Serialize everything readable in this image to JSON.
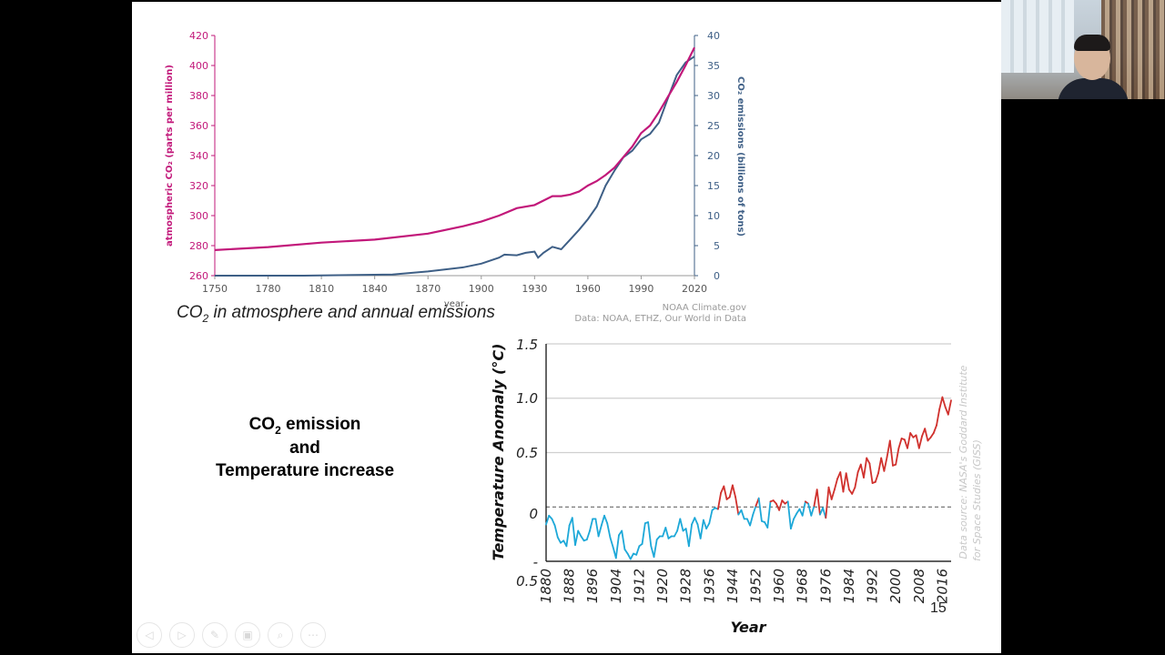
{
  "caption": {
    "main": "CO",
    "sub": "2",
    "rest": " in atmosphere and annual emissions"
  },
  "credits": {
    "line1": "NOAA Climate.gov",
    "line2": "Data: NOAA, ETHZ, Our World in Data"
  },
  "heading": {
    "line1_main": "CO",
    "line1_sub": "2",
    "line1_rest": " emission",
    "line2": "and",
    "line3": "Temperature increase"
  },
  "page_number": "15",
  "toolbar": {
    "icons": [
      "prev-icon",
      "next-icon",
      "pen-icon",
      "slides-icon",
      "zoom-icon",
      "more-icon"
    ],
    "glyphs": [
      "◁",
      "▷",
      "✎",
      "▣",
      "⌕",
      "⋯"
    ]
  },
  "colors": {
    "co2": "#c2187a",
    "emissions": "#3e5f86",
    "warm": "#d0312d",
    "cool": "#1da8d8"
  },
  "chart_data": [
    {
      "type": "line",
      "xlabel": "year",
      "ylabel_left": "atmospheric CO₂ (parts per million)",
      "ylabel_right": "CO₂ emissions (billions of tons)",
      "x_ticks": [
        "1750",
        "1780",
        "1810",
        "1840",
        "1870",
        "1900",
        "1930",
        "1960",
        "1990",
        "2020"
      ],
      "y_left_ticks": [
        "260",
        "280",
        "300",
        "320",
        "340",
        "360",
        "380",
        "400",
        "420"
      ],
      "y_right_ticks": [
        "0",
        "5",
        "10",
        "15",
        "20",
        "25",
        "30",
        "35",
        "40"
      ],
      "xlim": [
        1750,
        2020
      ],
      "ylim_left": [
        260,
        420
      ],
      "ylim_right": [
        0,
        40
      ],
      "series": [
        {
          "name": "atmospheric CO₂",
          "axis": "left",
          "color": "#c2187a",
          "x": [
            1750,
            1780,
            1810,
            1840,
            1870,
            1890,
            1900,
            1910,
            1920,
            1930,
            1935,
            1940,
            1945,
            1950,
            1955,
            1960,
            1965,
            1970,
            1975,
            1980,
            1985,
            1990,
            1995,
            2000,
            2005,
            2010,
            2015,
            2020
          ],
          "y": [
            277,
            279,
            282,
            284,
            288,
            293,
            296,
            300,
            305,
            307,
            310,
            313,
            313,
            314,
            316,
            320,
            323,
            327,
            332,
            339,
            346,
            355,
            360,
            369,
            379,
            389,
            400,
            412
          ]
        },
        {
          "name": "CO₂ emissions",
          "axis": "right",
          "color": "#3e5f86",
          "x": [
            1750,
            1800,
            1850,
            1870,
            1890,
            1900,
            1910,
            1913,
            1920,
            1925,
            1930,
            1932,
            1935,
            1940,
            1945,
            1950,
            1955,
            1960,
            1965,
            1970,
            1975,
            1980,
            1985,
            1990,
            1995,
            2000,
            2005,
            2010,
            2015,
            2020
          ],
          "y": [
            0,
            0,
            0.2,
            0.7,
            1.4,
            2.0,
            3.0,
            3.5,
            3.4,
            3.8,
            4.0,
            3.0,
            3.8,
            4.8,
            4.4,
            6.0,
            7.6,
            9.4,
            11.5,
            15.0,
            17.5,
            19.7,
            20.8,
            22.7,
            23.6,
            25.5,
            29.5,
            33.4,
            35.5,
            36.5
          ]
        }
      ]
    },
    {
      "type": "line",
      "xlabel": "Year",
      "ylabel": "Temperature Anomaly (°C)",
      "annotation": "Data source: NASA's Goddard Institute for Space Studies (GISS)",
      "x_ticks": [
        "1880",
        "1888",
        "1896",
        "1904",
        "1912",
        "1920",
        "1928",
        "1936",
        "1944",
        "1952",
        "1960",
        "1968",
        "1976",
        "1984",
        "1992",
        "2000",
        "2008",
        "2016"
      ],
      "y_ticks": [
        "1.5",
        "1.0",
        "0.5",
        "0",
        "-",
        "0.5"
      ],
      "xlim": [
        1880,
        2019
      ],
      "ylim": [
        -0.5,
        1.5
      ],
      "baseline": 0,
      "series": [
        {
          "name": "anomaly",
          "x": [
            1880,
            1881,
            1882,
            1883,
            1884,
            1885,
            1886,
            1887,
            1888,
            1889,
            1890,
            1891,
            1892,
            1893,
            1894,
            1895,
            1896,
            1897,
            1898,
            1899,
            1900,
            1901,
            1902,
            1903,
            1904,
            1905,
            1906,
            1907,
            1908,
            1909,
            1910,
            1911,
            1912,
            1913,
            1914,
            1915,
            1916,
            1917,
            1918,
            1919,
            1920,
            1921,
            1922,
            1923,
            1924,
            1925,
            1926,
            1927,
            1928,
            1929,
            1930,
            1931,
            1932,
            1933,
            1934,
            1935,
            1936,
            1937,
            1938,
            1939,
            1940,
            1941,
            1942,
            1943,
            1944,
            1945,
            1946,
            1947,
            1948,
            1949,
            1950,
            1951,
            1952,
            1953,
            1954,
            1955,
            1956,
            1957,
            1958,
            1959,
            1960,
            1961,
            1962,
            1963,
            1964,
            1965,
            1966,
            1967,
            1968,
            1969,
            1970,
            1971,
            1972,
            1973,
            1974,
            1975,
            1976,
            1977,
            1978,
            1979,
            1980,
            1981,
            1982,
            1983,
            1984,
            1985,
            1986,
            1987,
            1988,
            1989,
            1990,
            1991,
            1992,
            1993,
            1994,
            1995,
            1996,
            1997,
            1998,
            1999,
            2000,
            2001,
            2002,
            2003,
            2004,
            2005,
            2006,
            2007,
            2008,
            2009,
            2010,
            2011,
            2012,
            2013,
            2014,
            2015,
            2016,
            2017,
            2018,
            2019
          ],
          "y": [
            -0.16,
            -0.08,
            -0.11,
            -0.17,
            -0.28,
            -0.33,
            -0.31,
            -0.36,
            -0.17,
            -0.1,
            -0.35,
            -0.22,
            -0.27,
            -0.31,
            -0.3,
            -0.22,
            -0.11,
            -0.11,
            -0.27,
            -0.17,
            -0.08,
            -0.15,
            -0.28,
            -0.37,
            -0.47,
            -0.26,
            -0.22,
            -0.39,
            -0.43,
            -0.48,
            -0.43,
            -0.44,
            -0.36,
            -0.34,
            -0.15,
            -0.14,
            -0.36,
            -0.46,
            -0.3,
            -0.27,
            -0.27,
            -0.19,
            -0.29,
            -0.27,
            -0.27,
            -0.22,
            -0.11,
            -0.22,
            -0.2,
            -0.36,
            -0.16,
            -0.1,
            -0.16,
            -0.29,
            -0.12,
            -0.2,
            -0.15,
            -0.03,
            -0.01,
            -0.02,
            0.13,
            0.19,
            0.07,
            0.09,
            0.2,
            0.09,
            -0.07,
            -0.03,
            -0.11,
            -0.11,
            -0.17,
            -0.07,
            0.01,
            0.08,
            -0.13,
            -0.14,
            -0.19,
            0.05,
            0.06,
            0.03,
            -0.03,
            0.06,
            0.03,
            0.05,
            -0.2,
            -0.11,
            -0.06,
            -0.02,
            -0.08,
            0.05,
            0.03,
            -0.08,
            0.01,
            0.16,
            -0.07,
            -0.01,
            -0.1,
            0.18,
            0.07,
            0.16,
            0.26,
            0.32,
            0.14,
            0.31,
            0.16,
            0.12,
            0.18,
            0.32,
            0.39,
            0.27,
            0.45,
            0.4,
            0.22,
            0.23,
            0.31,
            0.45,
            0.33,
            0.46,
            0.61,
            0.38,
            0.39,
            0.54,
            0.63,
            0.62,
            0.54,
            0.68,
            0.64,
            0.66,
            0.54,
            0.65,
            0.72,
            0.61,
            0.64,
            0.68,
            0.75,
            0.9,
            1.01,
            0.92,
            0.85,
            0.98
          ]
        }
      ]
    }
  ]
}
